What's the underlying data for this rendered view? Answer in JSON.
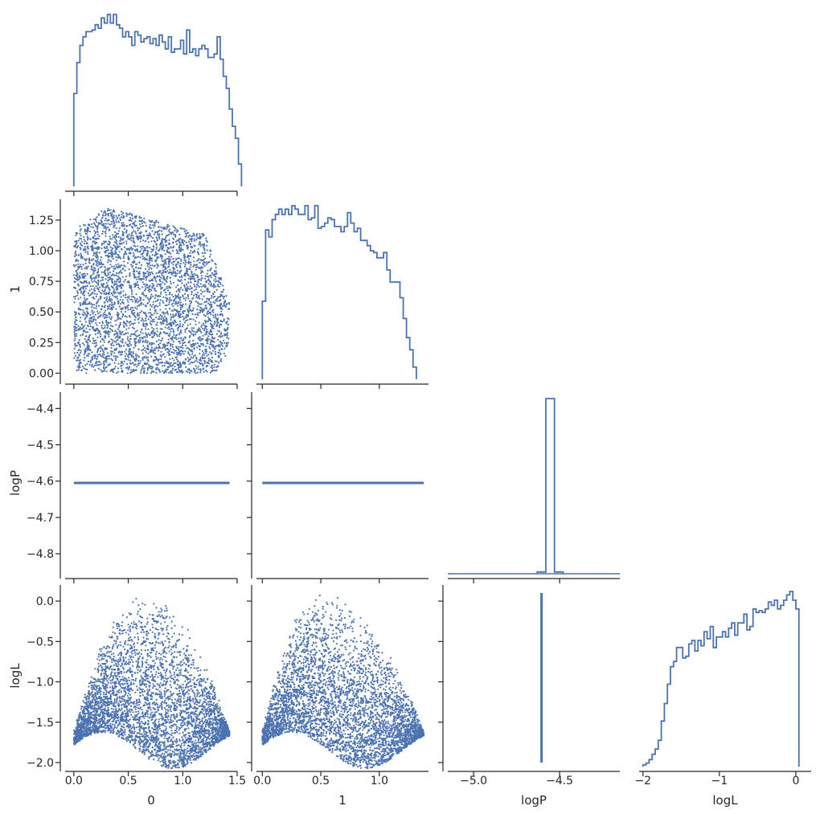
{
  "colors": {
    "series": "#4c72b0",
    "axis": "#262626",
    "background": "#ffffff"
  },
  "chart_data": {
    "type": "scatter",
    "variables": [
      "0",
      "1",
      "logP",
      "logL"
    ],
    "layout": "corner pair plot (lower triangle scatter, diagonal step histograms)",
    "ranges": {
      "0": [
        -0.08,
        1.5
      ],
      "1": [
        -0.05,
        1.42
      ],
      "logP": [
        -5.15,
        -4.15
      ],
      "logL": [
        -2.05,
        0.2
      ]
    },
    "scatter_y_ranges": {
      "1": [
        -0.05,
        1.42
      ],
      "logP": [
        -4.855,
        -4.355
      ],
      "logL": [
        -2.05,
        0.2
      ]
    },
    "ticks": {
      "0": [
        0.0,
        0.5,
        1.0,
        1.5
      ],
      "1": [
        0.0,
        0.5,
        1.0
      ],
      "logP": [
        -5.0,
        -4.5
      ],
      "logL": [
        -2,
        -1,
        0
      ]
    },
    "tick_labels": {
      "0": [
        "0.0",
        "0.5",
        "1.0",
        "1.5"
      ],
      "1": [
        "0.0",
        "0.5",
        "1.0"
      ],
      "logP": [
        "−5.0",
        "−4.5"
      ],
      "logL": [
        "−2",
        "−1",
        "0"
      ]
    },
    "y_ticks": {
      "1": [
        0.0,
        0.25,
        0.5,
        0.75,
        1.0,
        1.25
      ],
      "logP": [
        -4.4,
        -4.5,
        -4.6,
        -4.7,
        -4.8
      ],
      "logL": [
        0.0,
        -0.5,
        -1.0,
        -1.5,
        -2.0
      ]
    },
    "y_tick_labels": {
      "1": [
        "0.00",
        "0.25",
        "0.50",
        "0.75",
        "1.00",
        "1.25"
      ],
      "logP": [
        "−4.4",
        "−4.5",
        "−4.6",
        "−4.7",
        "−4.8"
      ],
      "logL": [
        "0.0",
        "−0.5",
        "−1.0",
        "−1.5",
        "−2.0"
      ]
    },
    "axis_labels": {
      "x": [
        "0",
        "1",
        "logP",
        "logL"
      ],
      "y": [
        "1",
        "logP",
        "logL"
      ]
    },
    "constant_logP": -4.605,
    "histograms": {
      "0": {
        "x0": 0.0,
        "bin_width": 0.028,
        "heights": [
          0.54,
          0.72,
          0.82,
          0.87,
          0.9,
          0.9,
          0.91,
          0.94,
          0.92,
          0.98,
          0.95,
          1.0,
          0.95,
          1.0,
          0.94,
          0.92,
          0.87,
          0.9,
          0.87,
          0.82,
          0.9,
          0.88,
          0.84,
          0.86,
          0.87,
          0.83,
          0.86,
          0.82,
          0.88,
          0.84,
          0.8,
          0.87,
          0.78,
          0.8,
          0.8,
          0.85,
          0.77,
          0.91,
          0.78,
          0.8,
          0.76,
          0.8,
          0.82,
          0.8,
          0.75,
          0.75,
          0.77,
          0.87,
          0.74,
          0.64,
          0.57,
          0.45,
          0.35,
          0.28,
          0.13
        ]
      },
      "1": {
        "x0": 0.0,
        "bin_width": 0.028,
        "heights": [
          0.45,
          0.86,
          0.82,
          0.92,
          0.95,
          0.98,
          0.95,
          0.98,
          0.95,
          1.0,
          0.98,
          0.95,
          0.95,
          1.0,
          0.92,
          0.93,
          1.0,
          0.87,
          0.88,
          0.9,
          0.93,
          0.92,
          0.88,
          0.88,
          0.85,
          0.88,
          0.96,
          0.9,
          0.85,
          0.87,
          0.8,
          0.8,
          0.77,
          0.74,
          0.73,
          0.7,
          0.7,
          0.73,
          0.63,
          0.56,
          0.56,
          0.56,
          0.47,
          0.35,
          0.24,
          0.17,
          0.07
        ]
      },
      "logP": {
        "x0": -4.63,
        "bin_width": 0.05,
        "heights": [
          0.01,
          1.0,
          0.01
        ]
      },
      "logL": {
        "x0": -2.0,
        "bin_width": 0.04,
        "heights": [
          0.01,
          0.02,
          0.04,
          0.07,
          0.1,
          0.15,
          0.26,
          0.36,
          0.47,
          0.57,
          0.6,
          0.68,
          0.68,
          0.62,
          0.63,
          0.7,
          0.72,
          0.66,
          0.72,
          0.69,
          0.77,
          0.73,
          0.8,
          0.68,
          0.74,
          0.74,
          0.77,
          0.74,
          0.79,
          0.82,
          0.75,
          0.82,
          0.82,
          0.87,
          0.78,
          0.8,
          0.9,
          0.88,
          0.89,
          0.88,
          0.9,
          0.94,
          0.92,
          0.95,
          0.9,
          0.92,
          0.95,
          0.98,
          1.0,
          0.95,
          0.9
        ]
      }
    },
    "scatter_clouds": {
      "0_vs_1": {
        "x_range": [
          0.0,
          1.43
        ],
        "y_range": [
          0.0,
          1.38
        ],
        "n_points": 9000,
        "description_shape": "rounded blob"
      },
      "0_vs_logL": {
        "x_range": [
          0.0,
          1.43
        ],
        "y_range": [
          -2.0,
          0.1
        ],
        "peak_x": 0.65,
        "n_points": 9000
      },
      "1_vs_logL": {
        "x_range": [
          0.0,
          1.38
        ],
        "y_range": [
          -2.0,
          0.1
        ],
        "peak_x": 0.5,
        "n_points": 9000
      }
    }
  }
}
